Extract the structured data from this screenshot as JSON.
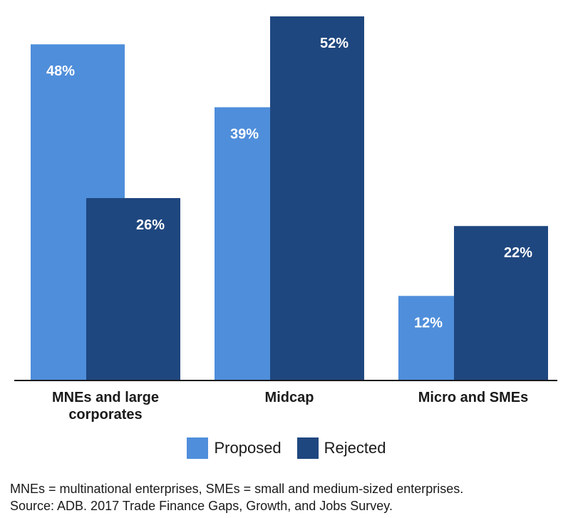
{
  "chart_data": {
    "type": "bar",
    "categories": [
      "MNEs and large corporates",
      "Midcap",
      "Micro and SMEs"
    ],
    "category_lines": [
      [
        "MNEs and large",
        "corporates"
      ],
      [
        "Midcap"
      ],
      [
        "Micro and SMEs"
      ]
    ],
    "series": [
      {
        "name": "Proposed",
        "values": [
          48,
          39,
          12
        ],
        "labels": [
          "48%",
          "39%",
          "12%"
        ],
        "color": "#4f8edb"
      },
      {
        "name": "Rejected",
        "values": [
          26,
          52,
          22
        ],
        "labels": [
          "26%",
          "52%",
          "22%"
        ],
        "color": "#1f477f"
      }
    ],
    "ylim": [
      0,
      52
    ],
    "grid": false,
    "legend_position": "bottom"
  },
  "legend": {
    "proposed": "Proposed",
    "rejected": "Rejected"
  },
  "notes": {
    "abbreviations": "MNEs = multinational enterprises, SMEs = small and medium-sized enterprises.",
    "source": "Source: ADB. 2017 Trade Finance Gaps, Growth, and Jobs Survey."
  }
}
